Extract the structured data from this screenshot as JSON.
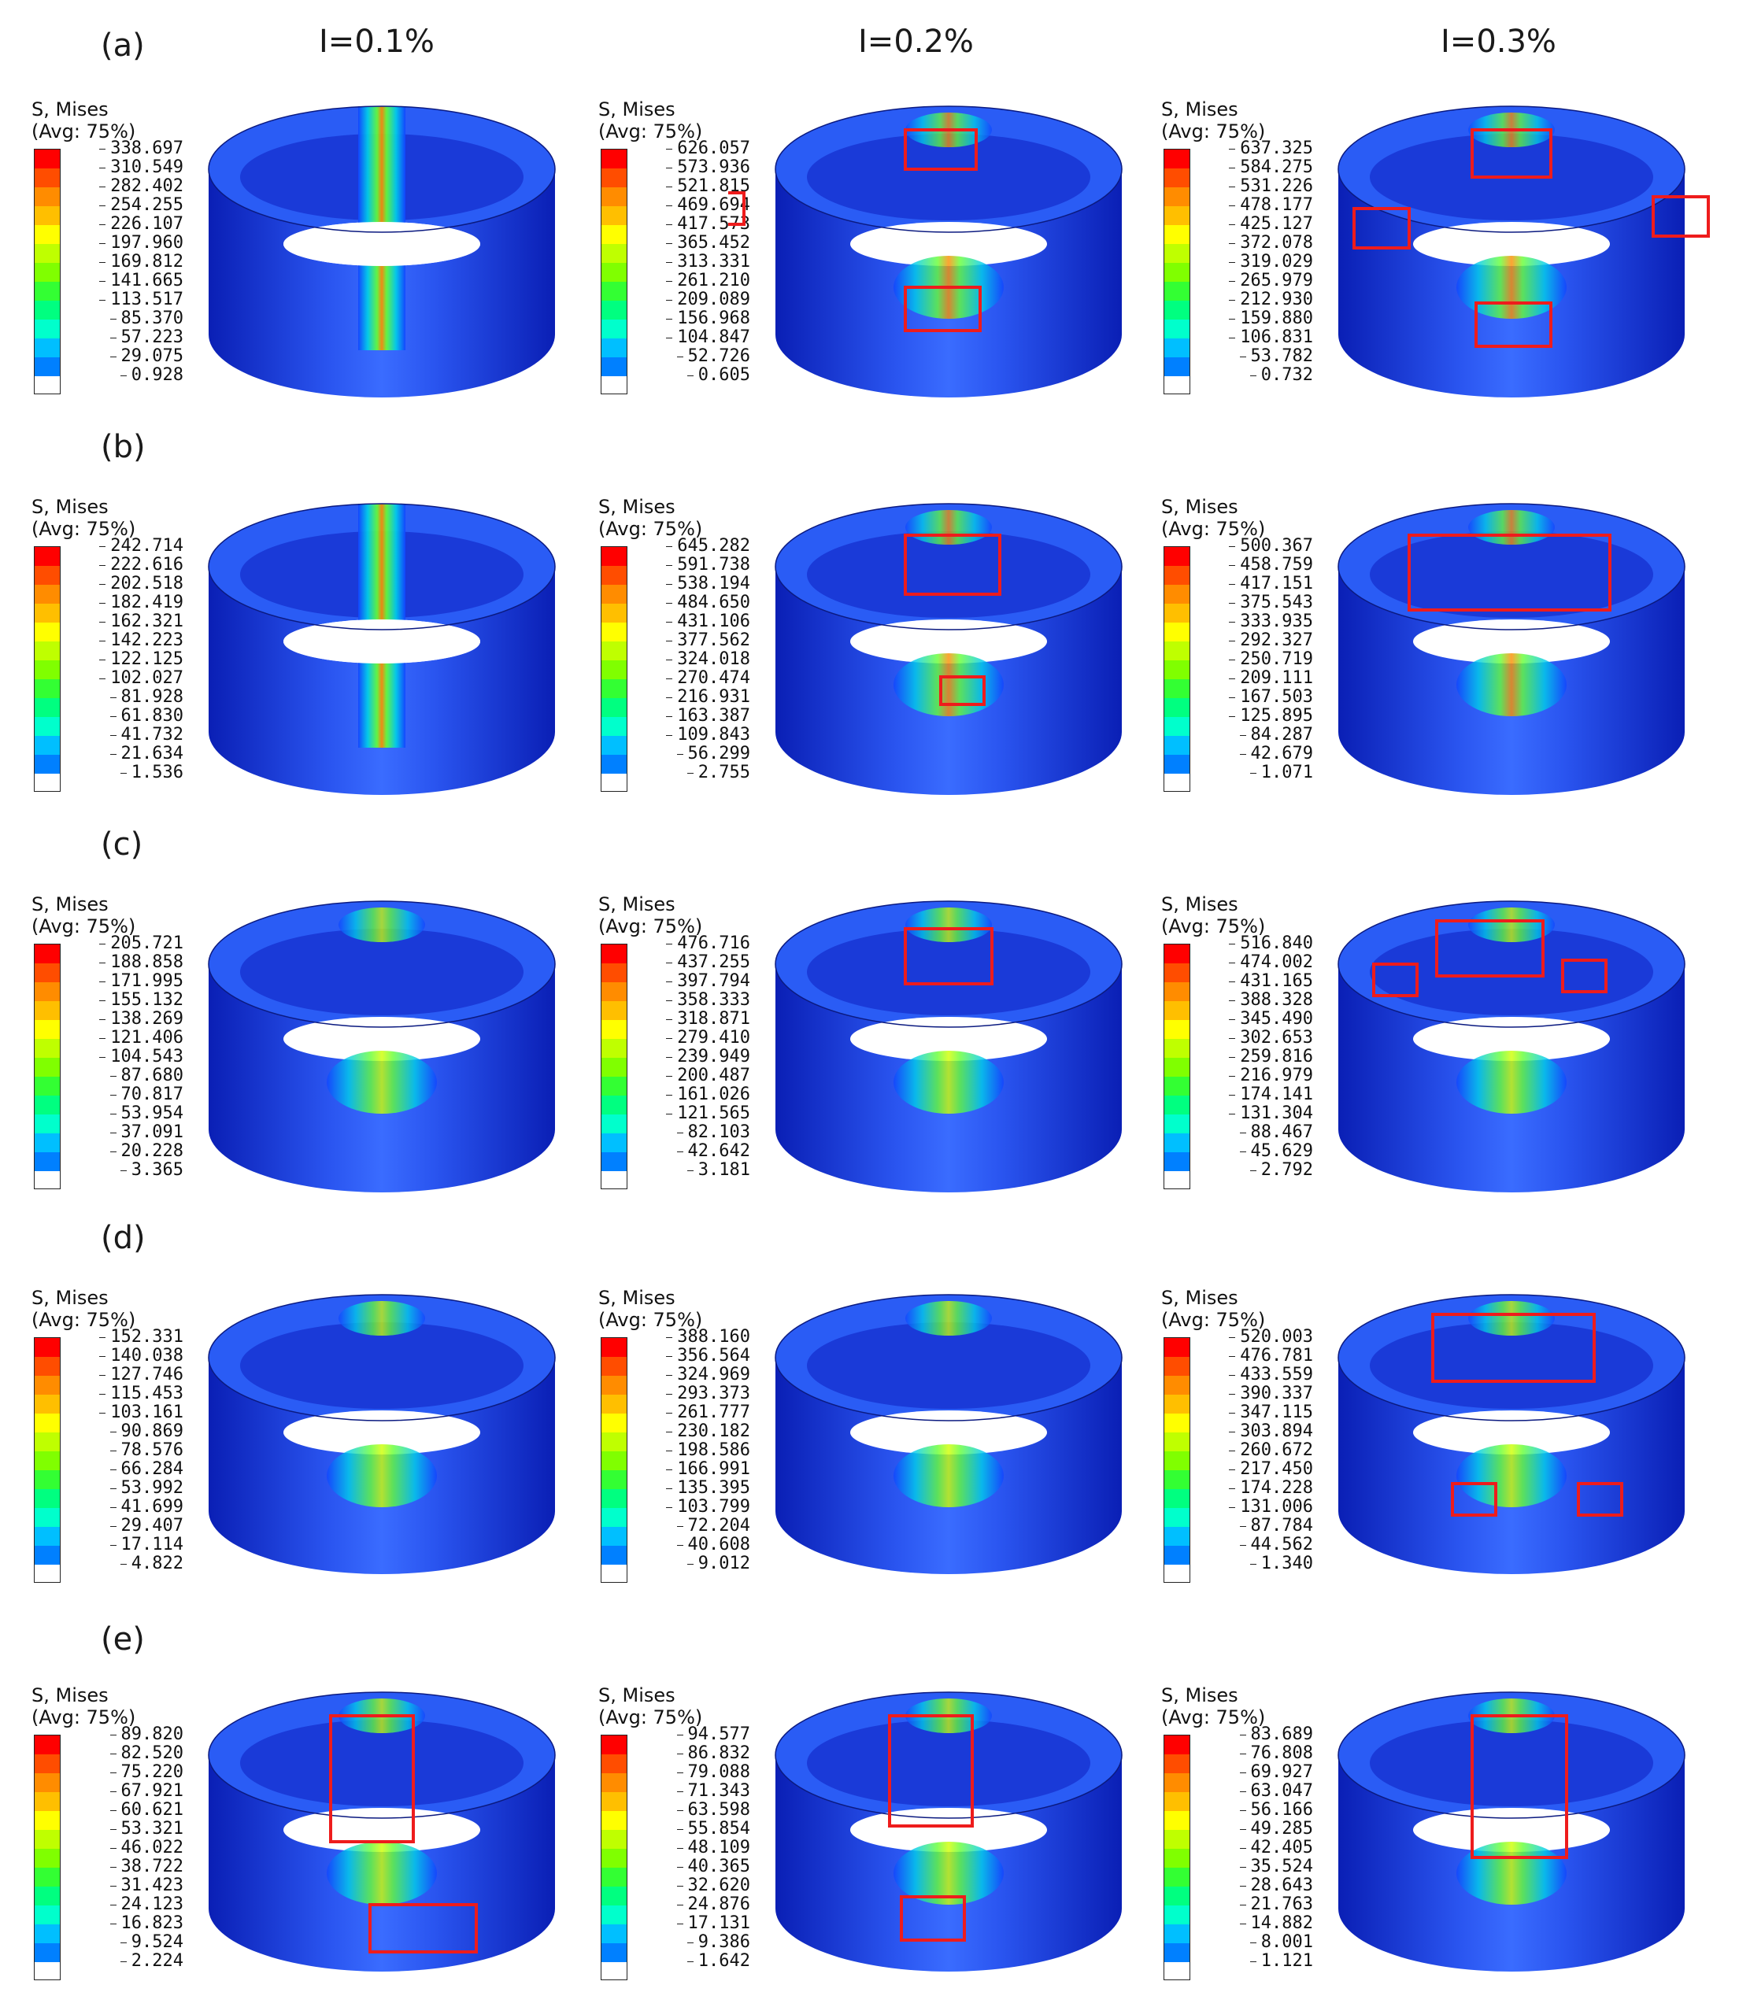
{
  "column_headers": [
    "I=0.1%",
    "I=0.2%",
    "I=0.3%"
  ],
  "legend_title_line1": "S, Mises",
  "legend_title_line2": "(Avg: 75%)",
  "colors": {
    "contour": [
      "#ff0000",
      "#ff4d00",
      "#ff8c00",
      "#ffbf00",
      "#ffff00",
      "#bfff00",
      "#80ff00",
      "#33ff33",
      "#00ff80",
      "#00ffcc",
      "#00bfff",
      "#0080ff",
      "#0000ff"
    ],
    "highlight_box": "#ee1c1c",
    "base_blue": "#1133e0"
  },
  "rows": [
    {
      "label": "(a)",
      "panels": [
        {
          "legend": [
            "338.697",
            "310.549",
            "282.402",
            "254.255",
            "226.107",
            "197.960",
            "169.812",
            "141.665",
            "113.517",
            "85.370",
            "57.223",
            "29.075",
            "0.928"
          ]
        },
        {
          "legend": [
            "626.057",
            "573.936",
            "521.815",
            "469.694",
            "417.573",
            "365.452",
            "313.331",
            "261.210",
            "209.089",
            "156.968",
            "104.847",
            "52.726",
            "0.605"
          ]
        },
        {
          "legend": [
            "637.325",
            "584.275",
            "531.226",
            "478.177",
            "425.127",
            "372.078",
            "319.029",
            "265.979",
            "212.930",
            "159.880",
            "106.831",
            "53.782",
            "0.732"
          ]
        }
      ]
    },
    {
      "label": "(b)",
      "panels": [
        {
          "legend": [
            "242.714",
            "222.616",
            "202.518",
            "182.419",
            "162.321",
            "142.223",
            "122.125",
            "102.027",
            "81.928",
            "61.830",
            "41.732",
            "21.634",
            "1.536"
          ]
        },
        {
          "legend": [
            "645.282",
            "591.738",
            "538.194",
            "484.650",
            "431.106",
            "377.562",
            "324.018",
            "270.474",
            "216.931",
            "163.387",
            "109.843",
            "56.299",
            "2.755"
          ]
        },
        {
          "legend": [
            "500.367",
            "458.759",
            "417.151",
            "375.543",
            "333.935",
            "292.327",
            "250.719",
            "209.111",
            "167.503",
            "125.895",
            "84.287",
            "42.679",
            "1.071"
          ]
        }
      ]
    },
    {
      "label": "(c)",
      "panels": [
        {
          "legend": [
            "205.721",
            "188.858",
            "171.995",
            "155.132",
            "138.269",
            "121.406",
            "104.543",
            "87.680",
            "70.817",
            "53.954",
            "37.091",
            "20.228",
            "3.365"
          ]
        },
        {
          "legend": [
            "476.716",
            "437.255",
            "397.794",
            "358.333",
            "318.871",
            "279.410",
            "239.949",
            "200.487",
            "161.026",
            "121.565",
            "82.103",
            "42.642",
            "3.181"
          ]
        },
        {
          "legend": [
            "516.840",
            "474.002",
            "431.165",
            "388.328",
            "345.490",
            "302.653",
            "259.816",
            "216.979",
            "174.141",
            "131.304",
            "88.467",
            "45.629",
            "2.792"
          ]
        }
      ]
    },
    {
      "label": "(d)",
      "panels": [
        {
          "legend": [
            "152.331",
            "140.038",
            "127.746",
            "115.453",
            "103.161",
            "90.869",
            "78.576",
            "66.284",
            "53.992",
            "41.699",
            "29.407",
            "17.114",
            "4.822"
          ]
        },
        {
          "legend": [
            "388.160",
            "356.564",
            "324.969",
            "293.373",
            "261.777",
            "230.182",
            "198.586",
            "166.991",
            "135.395",
            "103.799",
            "72.204",
            "40.608",
            "9.012"
          ]
        },
        {
          "legend": [
            "520.003",
            "476.781",
            "433.559",
            "390.337",
            "347.115",
            "303.894",
            "260.672",
            "217.450",
            "174.228",
            "131.006",
            "87.784",
            "44.562",
            "1.340"
          ]
        }
      ]
    },
    {
      "label": "(e)",
      "panels": [
        {
          "legend": [
            "89.820",
            "82.520",
            "75.220",
            "67.921",
            "60.621",
            "53.321",
            "46.022",
            "38.722",
            "31.423",
            "24.123",
            "16.823",
            "9.524",
            "2.224"
          ]
        },
        {
          "legend": [
            "94.577",
            "86.832",
            "79.088",
            "71.343",
            "63.598",
            "55.854",
            "48.109",
            "40.365",
            "32.620",
            "24.876",
            "17.131",
            "9.386",
            "1.642"
          ]
        },
        {
          "legend": [
            "83.689",
            "76.808",
            "69.927",
            "63.047",
            "56.166",
            "49.285",
            "42.405",
            "35.524",
            "28.643",
            "21.763",
            "14.882",
            "8.001",
            "1.121"
          ]
        }
      ]
    }
  ]
}
